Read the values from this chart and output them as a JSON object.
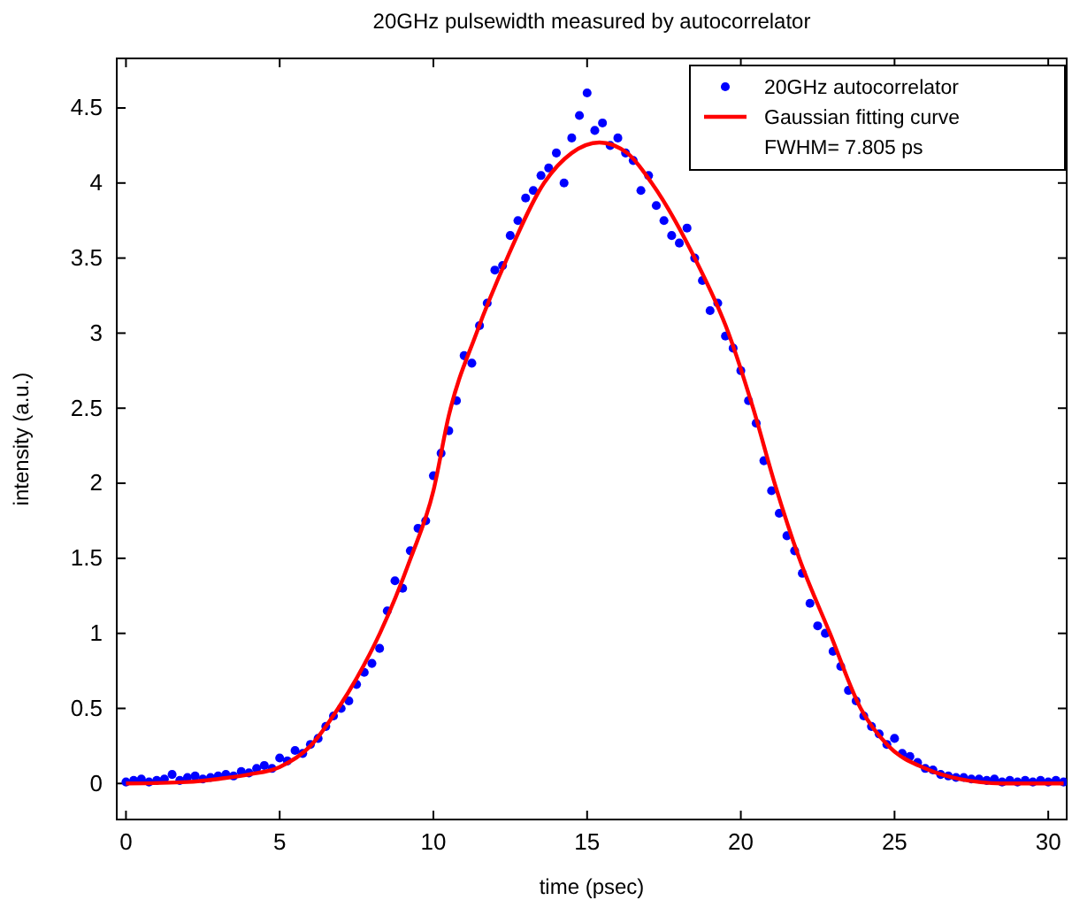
{
  "chart_data": {
    "type": "scatter",
    "title": "20GHz pulsewidth measured by autocorrelator",
    "xlabel": "time (psec)",
    "ylabel": "intensity (a.u.)",
    "xlim": [
      -0.3,
      30.6
    ],
    "ylim": [
      -0.24,
      4.83
    ],
    "xticks": [
      0,
      5,
      10,
      15,
      20,
      25,
      30
    ],
    "yticks": [
      0,
      0.5,
      1,
      1.5,
      2,
      2.5,
      3,
      3.5,
      4,
      4.5
    ],
    "grid": false,
    "legend": "top right",
    "line_style": "solid",
    "annotations": [
      "FWHM= 7.805  ps"
    ],
    "series": [
      {
        "name": "20GHz autocorrelator",
        "marker": "circle",
        "color": "#0000ff",
        "x": [
          0,
          0.25,
          0.5,
          0.75,
          1,
          1.25,
          1.5,
          1.75,
          2,
          2.25,
          2.5,
          2.75,
          3,
          3.25,
          3.5,
          3.75,
          4,
          4.25,
          4.5,
          4.75,
          5,
          5.25,
          5.5,
          5.75,
          6,
          6.25,
          6.5,
          6.75,
          7,
          7.25,
          7.5,
          7.75,
          8,
          8.25,
          8.5,
          8.75,
          9,
          9.25,
          9.5,
          9.75,
          10,
          10.25,
          10.5,
          10.75,
          11,
          11.25,
          11.5,
          11.75,
          12,
          12.25,
          12.5,
          12.75,
          13,
          13.25,
          13.5,
          13.75,
          14,
          14.25,
          14.5,
          14.75,
          15,
          15.25,
          15.5,
          15.75,
          16,
          16.25,
          16.5,
          16.75,
          17,
          17.25,
          17.5,
          17.75,
          18,
          18.25,
          18.5,
          18.75,
          19,
          19.25,
          19.5,
          19.75,
          20,
          20.25,
          20.5,
          20.75,
          21,
          21.25,
          21.5,
          21.75,
          22,
          22.25,
          22.5,
          22.75,
          23,
          23.25,
          23.5,
          23.75,
          24,
          24.25,
          24.5,
          24.75,
          25,
          25.25,
          25.5,
          25.75,
          26,
          26.25,
          26.5,
          26.75,
          27,
          27.25,
          27.5,
          27.75,
          28,
          28.25,
          28.5,
          28.75,
          29,
          29.25,
          29.5,
          29.75,
          30,
          30.25,
          30.5
        ],
        "values": [
          0.01,
          0.02,
          0.03,
          0.01,
          0.02,
          0.03,
          0.06,
          0.02,
          0.04,
          0.05,
          0.03,
          0.04,
          0.05,
          0.06,
          0.05,
          0.08,
          0.07,
          0.1,
          0.12,
          0.1,
          0.17,
          0.15,
          0.22,
          0.2,
          0.26,
          0.3,
          0.38,
          0.45,
          0.5,
          0.55,
          0.66,
          0.74,
          0.8,
          0.9,
          1.15,
          1.35,
          1.3,
          1.55,
          1.7,
          1.75,
          2.05,
          2.2,
          2.35,
          2.55,
          2.85,
          2.8,
          3.05,
          3.2,
          3.42,
          3.45,
          3.65,
          3.75,
          3.9,
          3.95,
          4.05,
          4.1,
          4.2,
          4.0,
          4.3,
          4.45,
          4.6,
          4.35,
          4.4,
          4.25,
          4.3,
          4.2,
          4.15,
          3.95,
          4.05,
          3.85,
          3.75,
          3.65,
          3.6,
          3.7,
          3.5,
          3.35,
          3.15,
          3.2,
          2.98,
          2.9,
          2.75,
          2.55,
          2.4,
          2.15,
          1.95,
          1.8,
          1.65,
          1.55,
          1.4,
          1.2,
          1.05,
          1.0,
          0.88,
          0.78,
          0.62,
          0.55,
          0.45,
          0.38,
          0.33,
          0.26,
          0.3,
          0.2,
          0.18,
          0.14,
          0.1,
          0.09,
          0.06,
          0.05,
          0.04,
          0.04,
          0.03,
          0.03,
          0.02,
          0.03,
          0.01,
          0.02,
          0.01,
          0.02,
          0.01,
          0.02,
          0.01,
          0.02,
          0.01
        ]
      },
      {
        "name": "Gaussian fitting curve",
        "type": "line",
        "marker": "none",
        "color": "#ff0000",
        "x": [
          0,
          2,
          3,
          4,
          5,
          6,
          6.9,
          7.5,
          8.26,
          9.26,
          10,
          10.5,
          11.4,
          12.4,
          13.6,
          14.5,
          15.4,
          16.3,
          17.1,
          18.5,
          19.6,
          20.4,
          21.1,
          21.9,
          22.9,
          23.9,
          24.8,
          26,
          27.1,
          28.5,
          30.5
        ],
        "values": [
          0,
          0.01,
          0.03,
          0.06,
          0.11,
          0.25,
          0.5,
          0.7,
          1,
          1.5,
          1.95,
          2.45,
          3,
          3.5,
          4,
          4.2,
          4.27,
          4.2,
          4,
          3.5,
          3,
          2.5,
          2,
          1.5,
          1,
          0.5,
          0.25,
          0.1,
          0.03,
          0,
          0
        ]
      }
    ]
  }
}
